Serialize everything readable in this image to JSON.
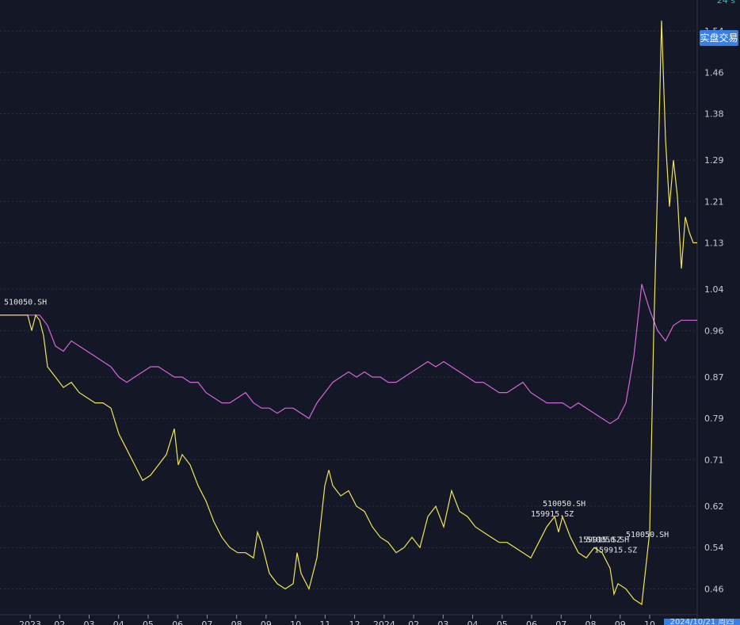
{
  "header": {
    "top_indicator": "24 s",
    "live_button_label": "实盘交易"
  },
  "footer": {
    "date_badge": "2024/10/21 周四"
  },
  "colors": {
    "background": "#131726",
    "grid": "#2a3245",
    "axis_text": "#c7ccd6",
    "series_yellow": "#f1e45a",
    "series_magenta": "#d667d8",
    "label_text": "#e6e6e6",
    "accent_blue": "#3a7fe3"
  },
  "chart_data": {
    "type": "line",
    "title": "",
    "xlabel": "",
    "ylabel": "",
    "ylim": [
      0.41,
      1.6
    ],
    "y_ticks": [
      0.46,
      0.54,
      0.62,
      0.71,
      0.79,
      0.87,
      0.96,
      1.04,
      1.13,
      1.21,
      1.29,
      1.38,
      1.46,
      1.54
    ],
    "x_ticks": [
      "2023",
      "02",
      "03",
      "04",
      "05",
      "06",
      "07",
      "08",
      "09",
      "10",
      "11",
      "12",
      "2024",
      "02",
      "03",
      "04",
      "05",
      "06",
      "07",
      "08",
      "09",
      "10"
    ],
    "grid": true,
    "series": [
      {
        "name": "",
        "color": "#d667d8",
        "points": [
          [
            0,
            0.99
          ],
          [
            8,
            0.99
          ],
          [
            10,
            0.99
          ],
          [
            12,
            0.97
          ],
          [
            14,
            0.93
          ],
          [
            16,
            0.92
          ],
          [
            18,
            0.94
          ],
          [
            20,
            0.93
          ],
          [
            22,
            0.92
          ],
          [
            24,
            0.91
          ],
          [
            26,
            0.9
          ],
          [
            28,
            0.89
          ],
          [
            30,
            0.87
          ],
          [
            32,
            0.86
          ],
          [
            34,
            0.87
          ],
          [
            36,
            0.88
          ],
          [
            38,
            0.89
          ],
          [
            40,
            0.89
          ],
          [
            42,
            0.88
          ],
          [
            44,
            0.87
          ],
          [
            46,
            0.87
          ],
          [
            48,
            0.86
          ],
          [
            50,
            0.86
          ],
          [
            52,
            0.84
          ],
          [
            54,
            0.83
          ],
          [
            56,
            0.82
          ],
          [
            58,
            0.82
          ],
          [
            60,
            0.83
          ],
          [
            62,
            0.84
          ],
          [
            64,
            0.82
          ],
          [
            66,
            0.81
          ],
          [
            68,
            0.81
          ],
          [
            70,
            0.8
          ],
          [
            72,
            0.81
          ],
          [
            74,
            0.81
          ],
          [
            76,
            0.8
          ],
          [
            78,
            0.79
          ],
          [
            80,
            0.82
          ],
          [
            82,
            0.84
          ],
          [
            84,
            0.86
          ],
          [
            86,
            0.87
          ],
          [
            88,
            0.88
          ],
          [
            90,
            0.87
          ],
          [
            92,
            0.88
          ],
          [
            94,
            0.87
          ],
          [
            96,
            0.87
          ],
          [
            98,
            0.86
          ],
          [
            100,
            0.86
          ],
          [
            102,
            0.87
          ],
          [
            104,
            0.88
          ],
          [
            106,
            0.89
          ],
          [
            108,
            0.9
          ],
          [
            110,
            0.89
          ],
          [
            112,
            0.9
          ],
          [
            114,
            0.89
          ],
          [
            116,
            0.88
          ],
          [
            118,
            0.87
          ],
          [
            120,
            0.86
          ],
          [
            122,
            0.86
          ],
          [
            124,
            0.85
          ],
          [
            126,
            0.84
          ],
          [
            128,
            0.84
          ],
          [
            130,
            0.85
          ],
          [
            132,
            0.86
          ],
          [
            134,
            0.84
          ],
          [
            136,
            0.83
          ],
          [
            138,
            0.82
          ],
          [
            140,
            0.82
          ],
          [
            142,
            0.82
          ],
          [
            144,
            0.81
          ],
          [
            146,
            0.82
          ],
          [
            148,
            0.81
          ],
          [
            150,
            0.8
          ],
          [
            152,
            0.79
          ],
          [
            154,
            0.78
          ],
          [
            156,
            0.79
          ],
          [
            158,
            0.82
          ],
          [
            160,
            0.91
          ],
          [
            162,
            1.05
          ],
          [
            164,
            1.0
          ],
          [
            166,
            0.96
          ],
          [
            168,
            0.94
          ],
          [
            170,
            0.97
          ],
          [
            172,
            0.98
          ],
          [
            174,
            0.98
          ],
          [
            176,
            0.98
          ]
        ]
      },
      {
        "name": "",
        "color": "#f1e45a",
        "points": [
          [
            0,
            0.99
          ],
          [
            7,
            0.99
          ],
          [
            8,
            0.96
          ],
          [
            9,
            0.99
          ],
          [
            10,
            0.98
          ],
          [
            11,
            0.95
          ],
          [
            12,
            0.89
          ],
          [
            14,
            0.87
          ],
          [
            16,
            0.85
          ],
          [
            18,
            0.86
          ],
          [
            20,
            0.84
          ],
          [
            22,
            0.83
          ],
          [
            24,
            0.82
          ],
          [
            26,
            0.82
          ],
          [
            28,
            0.81
          ],
          [
            30,
            0.76
          ],
          [
            32,
            0.73
          ],
          [
            34,
            0.7
          ],
          [
            36,
            0.67
          ],
          [
            38,
            0.68
          ],
          [
            40,
            0.7
          ],
          [
            42,
            0.72
          ],
          [
            44,
            0.77
          ],
          [
            45,
            0.7
          ],
          [
            46,
            0.72
          ],
          [
            48,
            0.7
          ],
          [
            50,
            0.66
          ],
          [
            52,
            0.63
          ],
          [
            54,
            0.59
          ],
          [
            56,
            0.56
          ],
          [
            58,
            0.54
          ],
          [
            60,
            0.53
          ],
          [
            62,
            0.53
          ],
          [
            64,
            0.52
          ],
          [
            65,
            0.57
          ],
          [
            66,
            0.55
          ],
          [
            68,
            0.49
          ],
          [
            70,
            0.47
          ],
          [
            72,
            0.46
          ],
          [
            74,
            0.47
          ],
          [
            75,
            0.53
          ],
          [
            76,
            0.49
          ],
          [
            78,
            0.46
          ],
          [
            80,
            0.52
          ],
          [
            82,
            0.66
          ],
          [
            83,
            0.69
          ],
          [
            84,
            0.66
          ],
          [
            86,
            0.64
          ],
          [
            88,
            0.65
          ],
          [
            90,
            0.62
          ],
          [
            92,
            0.61
          ],
          [
            94,
            0.58
          ],
          [
            96,
            0.56
          ],
          [
            98,
            0.55
          ],
          [
            100,
            0.53
          ],
          [
            102,
            0.54
          ],
          [
            104,
            0.56
          ],
          [
            106,
            0.54
          ],
          [
            108,
            0.6
          ],
          [
            110,
            0.62
          ],
          [
            112,
            0.58
          ],
          [
            114,
            0.65
          ],
          [
            116,
            0.61
          ],
          [
            118,
            0.6
          ],
          [
            120,
            0.58
          ],
          [
            122,
            0.57
          ],
          [
            124,
            0.56
          ],
          [
            126,
            0.55
          ],
          [
            128,
            0.55
          ],
          [
            130,
            0.54
          ],
          [
            132,
            0.53
          ],
          [
            134,
            0.52
          ],
          [
            136,
            0.55
          ],
          [
            138,
            0.58
          ],
          [
            140,
            0.6
          ],
          [
            141,
            0.57
          ],
          [
            142,
            0.6
          ],
          [
            144,
            0.56
          ],
          [
            146,
            0.53
          ],
          [
            148,
            0.52
          ],
          [
            150,
            0.54
          ],
          [
            152,
            0.53
          ],
          [
            154,
            0.5
          ],
          [
            155,
            0.45
          ],
          [
            156,
            0.47
          ],
          [
            158,
            0.46
          ],
          [
            160,
            0.44
          ],
          [
            162,
            0.43
          ],
          [
            164,
            0.57
          ],
          [
            165,
            0.95
          ],
          [
            166,
            1.24
          ],
          [
            167,
            1.56
          ],
          [
            168,
            1.33
          ],
          [
            169,
            1.2
          ],
          [
            170,
            1.29
          ],
          [
            171,
            1.22
          ],
          [
            172,
            1.08
          ],
          [
            173,
            1.18
          ],
          [
            174,
            1.15
          ],
          [
            175,
            1.13
          ],
          [
            176,
            1.13
          ]
        ]
      }
    ],
    "annotations": [
      {
        "text": "510050.SH",
        "x": 1,
        "y": 1.01
      },
      {
        "text": "510050.SH",
        "x": 137,
        "y": 0.62
      },
      {
        "text": "159915.SZ",
        "x": 134,
        "y": 0.6
      },
      {
        "text": "159915.SZ",
        "x": 146,
        "y": 0.55
      },
      {
        "text": "159915.SZ",
        "x": 150,
        "y": 0.53
      },
      {
        "text": "510050.SH",
        "x": 148,
        "y": 0.55
      },
      {
        "text": "510050.SH",
        "x": 158,
        "y": 0.56
      }
    ]
  }
}
